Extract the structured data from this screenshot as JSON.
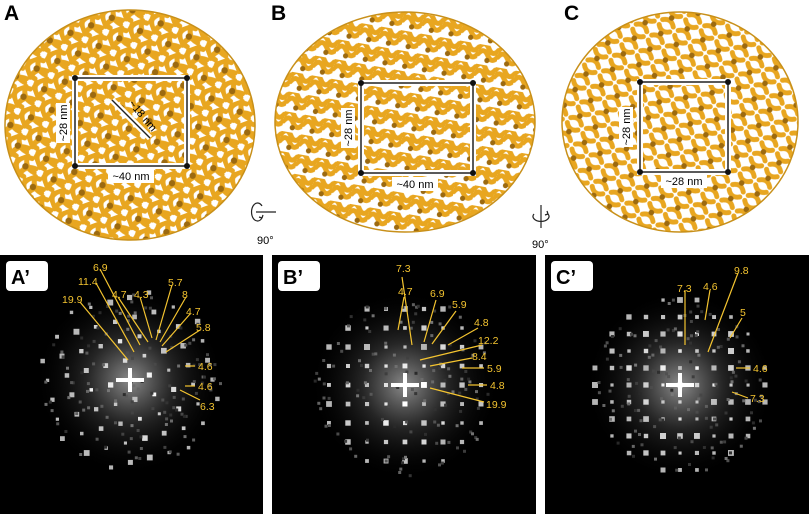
{
  "panels_top": [
    {
      "label": "A",
      "dims": [
        "~28 nm",
        "~18 nm",
        "~40 nm"
      ]
    },
    {
      "label": "B",
      "dims": [
        "~28 nm",
        "~40 nm"
      ]
    },
    {
      "label": "C",
      "dims": [
        "~28 nm",
        "~28 nm"
      ]
    }
  ],
  "rotations": [
    "90°",
    "90°"
  ],
  "panels_fft": [
    {
      "label": "A’",
      "spacings": [
        "6.9",
        "11.4",
        "4.7",
        "4.3",
        "5.7",
        "19.9",
        "8",
        "4.7",
        "5.8",
        "4.6",
        "4.6",
        "6.3"
      ]
    },
    {
      "label": "B’",
      "spacings": [
        "7.3",
        "4.7",
        "6.9",
        "5.9",
        "4.8",
        "12.2",
        "8.4",
        "5.9",
        "4.8",
        "19.9"
      ]
    },
    {
      "label": "C’",
      "spacings": [
        "9.8",
        "7.3",
        "4.6",
        "5",
        "4.6",
        "7.3"
      ]
    }
  ],
  "colors": {
    "density": "#e8a620",
    "density_dark": "#8a5a08",
    "annotation": "#f4c430",
    "frame": "#ffffff"
  }
}
